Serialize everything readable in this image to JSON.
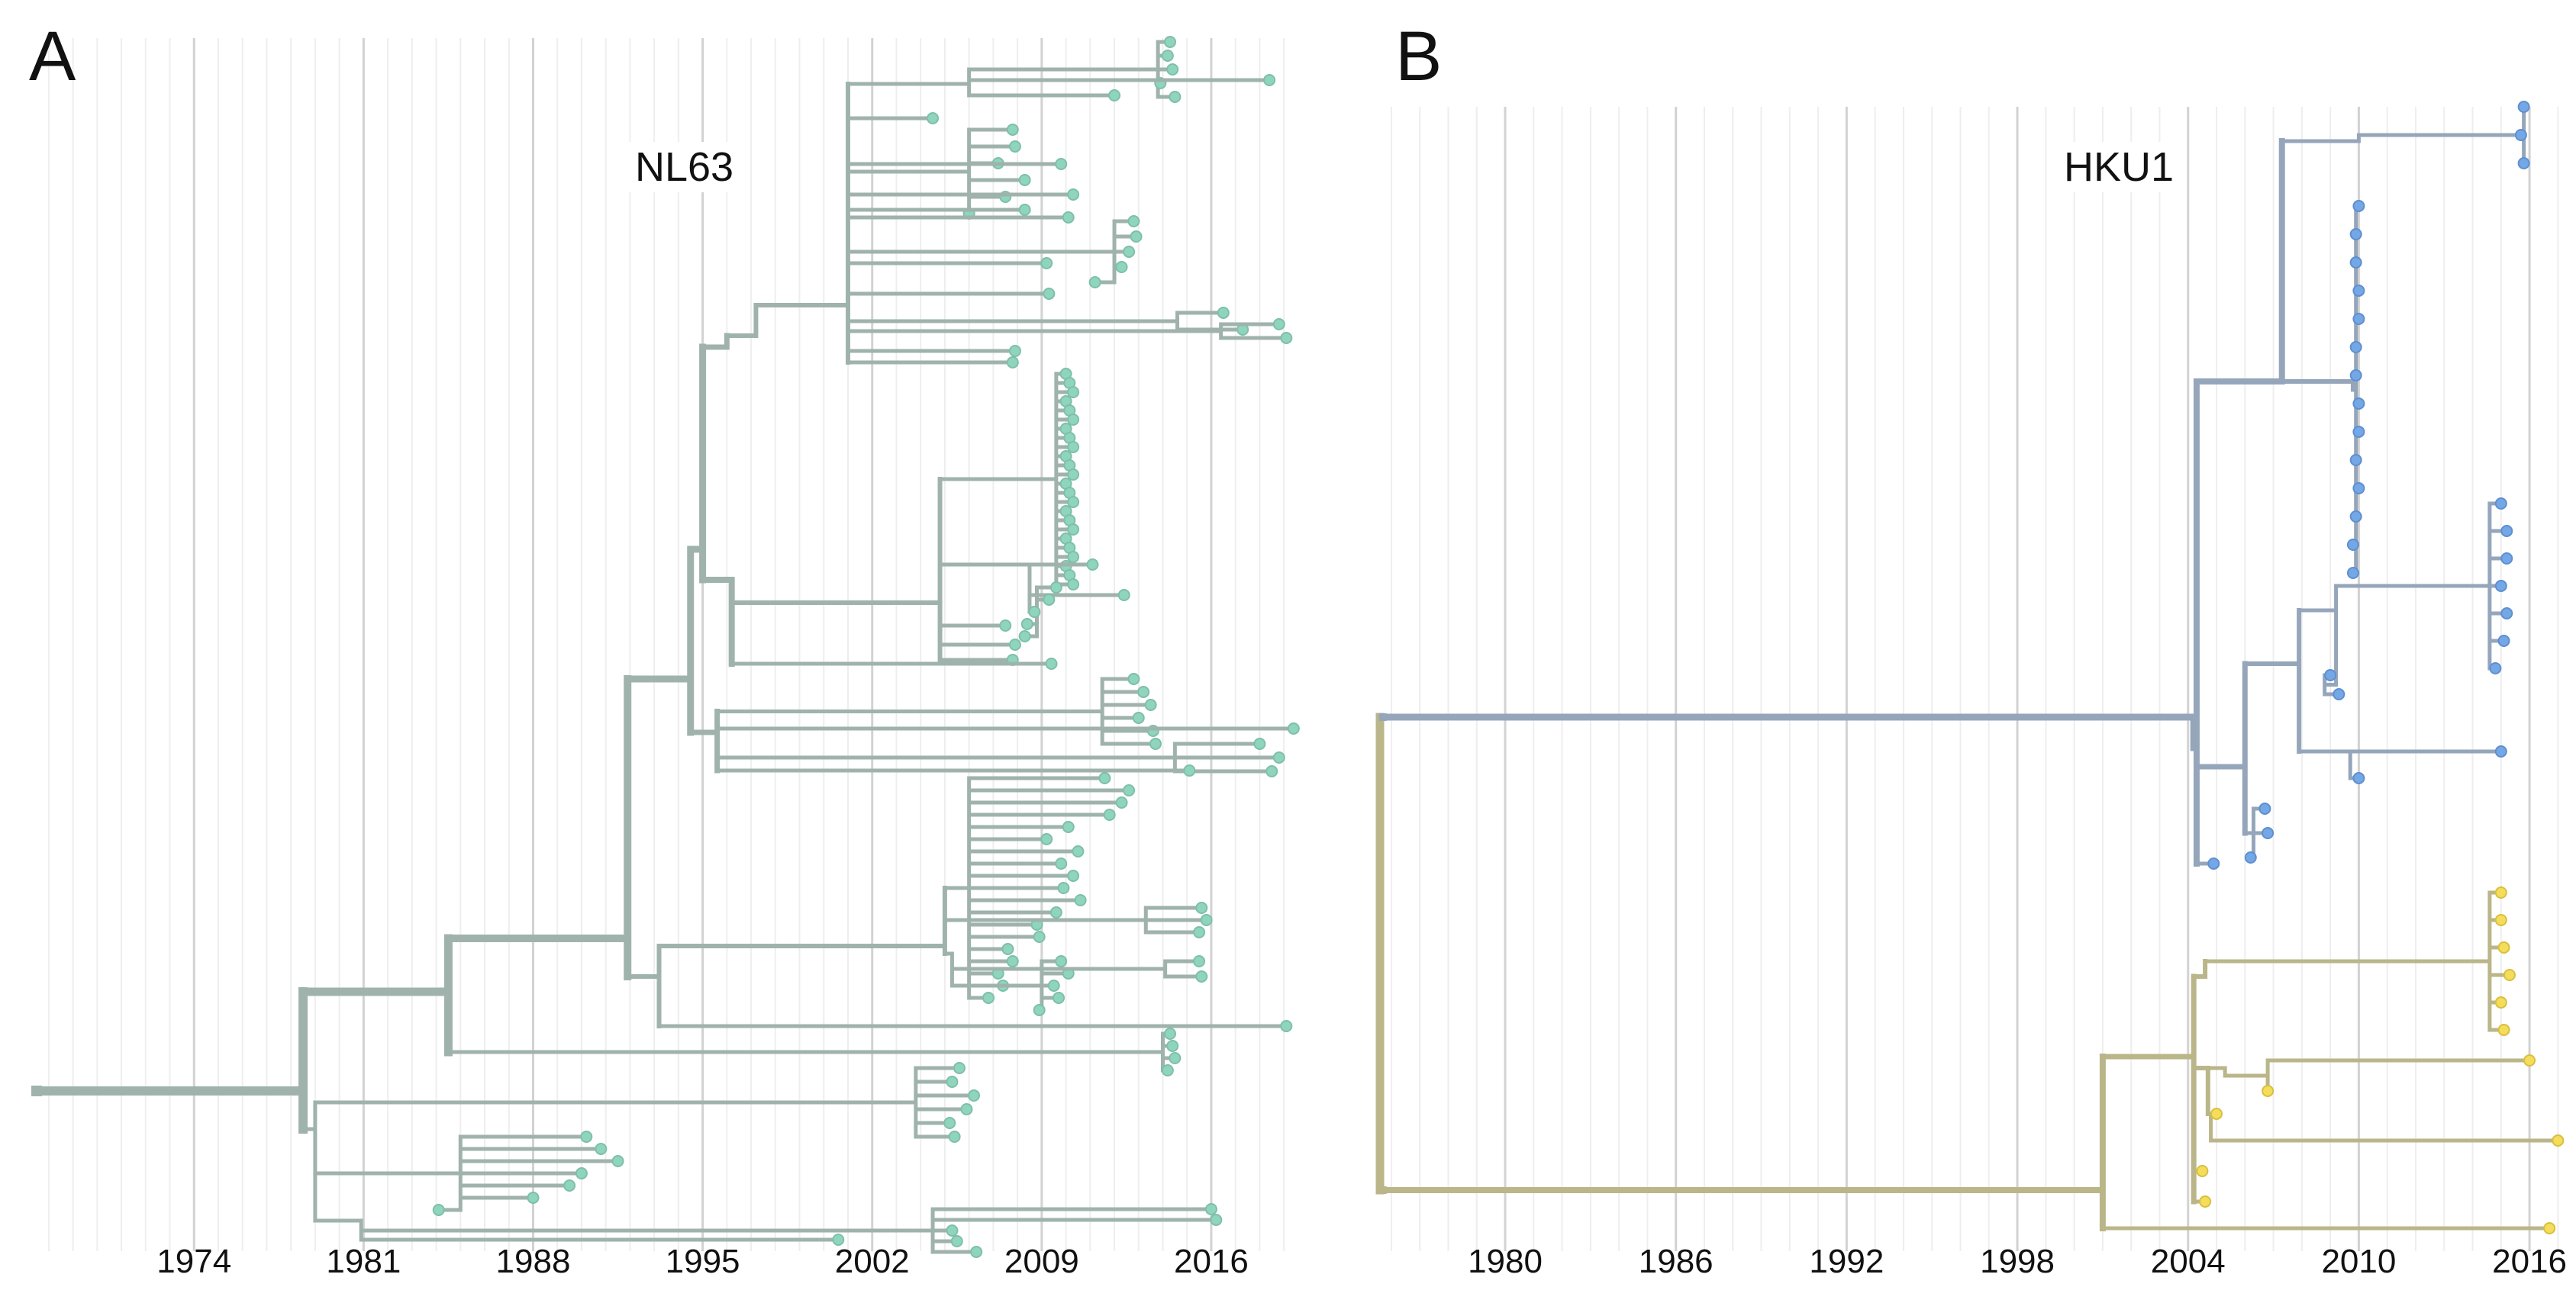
{
  "panels": [
    {
      "id": "A",
      "letter": "A",
      "virus": "NL63",
      "tick_labels": [
        "1974",
        "1981",
        "1988",
        "1995",
        "2002",
        "2009",
        "2016"
      ],
      "tick_years": [
        1974,
        1981,
        1988,
        1995,
        2002,
        2009,
        2016
      ],
      "year_range": [
        1967.5,
        2019.5
      ],
      "colors": {
        "branch": "#9fb3ac",
        "tip": "#8fd5bd",
        "tip_edge": "#7fbfa8"
      }
    },
    {
      "id": "B",
      "letter": "B",
      "virus": "HKU1",
      "tick_labels": [
        "1980",
        "1986",
        "1992",
        "1998",
        "2004",
        "2010",
        "2016"
      ],
      "tick_years": [
        1980,
        1986,
        1992,
        1998,
        2004,
        2010,
        2016
      ],
      "year_range": [
        1975.6,
        2017.5
      ],
      "colors": {
        "clade1_branch": "#95a6bb",
        "clade1_tip": "#74a7e6",
        "clade2_branch": "#bab689",
        "clade2_tip": "#f5dd5c"
      }
    }
  ]
}
